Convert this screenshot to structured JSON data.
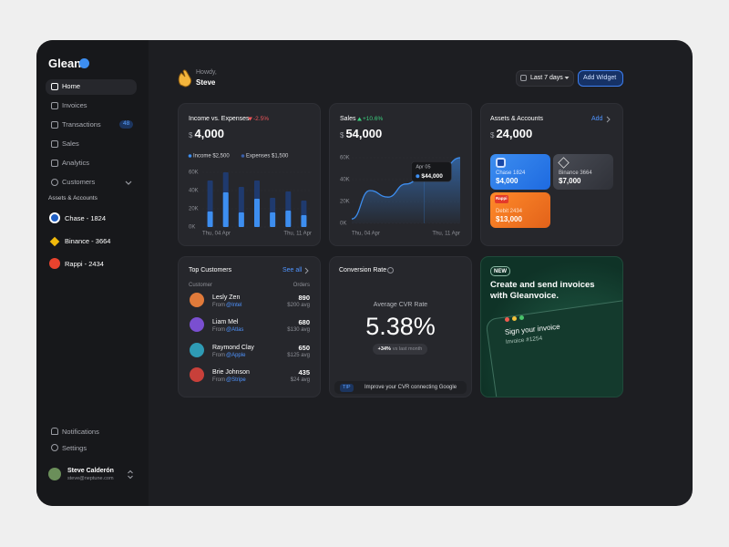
{
  "sidebar": {
    "brand": "Glean",
    "nav": [
      "Home",
      "Invoices",
      "Transactions",
      "Sales",
      "Analytics",
      "Customers"
    ],
    "badge": "48",
    "section": "Assets & Accounts",
    "accounts": [
      "Chase - 1824",
      "Binance - 3664",
      "Rappi - 2434"
    ],
    "footer": [
      "Notifications",
      "Settings"
    ],
    "user": {
      "name": "Steve Calderón",
      "email": "steve@neptune.com"
    }
  },
  "header": {
    "greeting": "Howdy,",
    "name": "Steve",
    "range": "Last 7 days",
    "button": "Add Widget"
  },
  "income_card": {
    "title": "Income vs. Expenses",
    "change": "-2.5%",
    "currency": "$",
    "amount": "4,000",
    "chart": {
      "type": "bar",
      "categories": [
        "Thu, 04 Apr",
        null,
        null,
        null,
        null,
        null,
        "Thu, 11 Apr"
      ],
      "series": [
        {
          "name": "Income $2,500",
          "color": "#3d8ef0",
          "values": [
            17000,
            38000,
            16000,
            31000,
            16000,
            18000,
            13000
          ]
        },
        {
          "name": "Expenses $1,500",
          "color": "#1f3a6e",
          "values": [
            51000,
            60000,
            44000,
            51000,
            32000,
            39000,
            29000
          ]
        }
      ],
      "ylim": [
        0,
        60000
      ],
      "yticks": [
        {
          "value": 0,
          "label": "0K"
        },
        {
          "value": 20000,
          "label": "20K"
        },
        {
          "value": 40000,
          "label": "40K"
        },
        {
          "value": 60000,
          "label": "60K"
        }
      ]
    }
  },
  "sales_card": {
    "title": "Sales",
    "change": "+10.6%",
    "currency": "$",
    "amount": "54,000",
    "chart": {
      "type": "area",
      "categories": [
        "Thu, 04 Apr",
        null,
        null,
        null,
        null,
        null,
        "Thu, 11 Apr"
      ],
      "values": [
        4000,
        30000,
        24000,
        36000,
        44000,
        50000,
        60000
      ],
      "value_labels": [
        null,
        null,
        null,
        null,
        "$44,000",
        null,
        null
      ],
      "tooltip_date": "Apr 05",
      "color": "#3d8ef0",
      "ylim": [
        0,
        60000
      ],
      "yticks": [
        {
          "value": 0,
          "label": "0K"
        },
        {
          "value": 20000,
          "label": "20K"
        },
        {
          "value": 40000,
          "label": "40K"
        },
        {
          "value": 60000,
          "label": "60K"
        }
      ]
    }
  },
  "assets_card": {
    "title": "Assets & Accounts",
    "action": "Add",
    "currency": "$",
    "amount": "24,000",
    "accounts": [
      {
        "name": "Chase 1824",
        "amount": "$4,000"
      },
      {
        "name": "Binance 3664",
        "amount": "$7,000"
      },
      {
        "name": "Debit 2434",
        "amount": "$13,000",
        "logo": "Rappi"
      }
    ]
  },
  "customers_card": {
    "title": "Top Customers",
    "action": "See all",
    "columns": [
      "Customer",
      "Orders"
    ],
    "rows": [
      {
        "name": "Lesly Zen",
        "from": "From",
        "company": "@Intel",
        "orders": "890",
        "avg": "$200 avg"
      },
      {
        "name": "Liam Mel",
        "from": "From",
        "company": "@Atlas",
        "orders": "680",
        "avg": "$130 avg"
      },
      {
        "name": "Raymond Clay",
        "from": "From",
        "company": "@Apple",
        "orders": "650",
        "avg": "$125 avg"
      },
      {
        "name": "Brie Johnson",
        "from": "From",
        "company": "@Stripe",
        "orders": "435",
        "avg": "$24 avg"
      }
    ]
  },
  "conversion_card": {
    "title": "Conversion Rate",
    "label": "Average CVR Rate",
    "value": "5.38%",
    "change": "+34%",
    "change_note": "vs last month",
    "tip_tag": "TIP",
    "tip": "Improve your CVR connecting Google"
  },
  "promo_card": {
    "tag": "NEW",
    "headline": "Create and send invoices with Gleanvoice.",
    "preview_title": "Sign your invoice",
    "preview_subtitle": "Invoice #1254"
  }
}
